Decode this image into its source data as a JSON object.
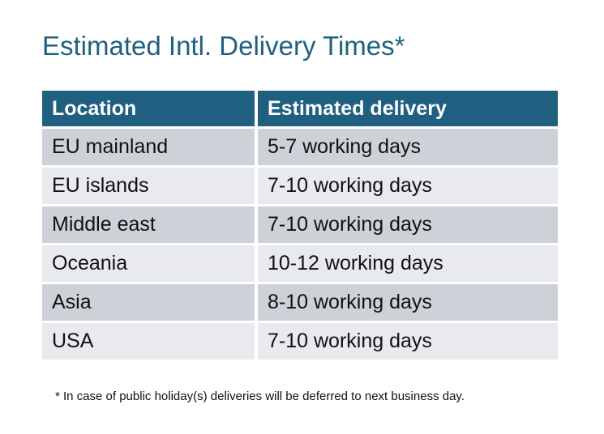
{
  "title": "Estimated Intl. Delivery Times*",
  "table": {
    "headers": [
      "Location",
      "Estimated delivery"
    ],
    "rows": [
      [
        "EU mainland",
        "5-7 working days"
      ],
      [
        "EU islands",
        "7-10 working days"
      ],
      [
        "Middle east",
        "7-10 working days"
      ],
      [
        "Oceania",
        "10-12 working days"
      ],
      [
        "Asia",
        "8-10 working days"
      ],
      [
        "USA",
        "7-10 working days"
      ]
    ]
  },
  "footnote": "* In case of public holiday(s) deliveries will be deferred to next business day.",
  "colors": {
    "accent": "#1F5F80",
    "row_dark": "#CDD2D9",
    "row_light": "#E8EAED"
  }
}
